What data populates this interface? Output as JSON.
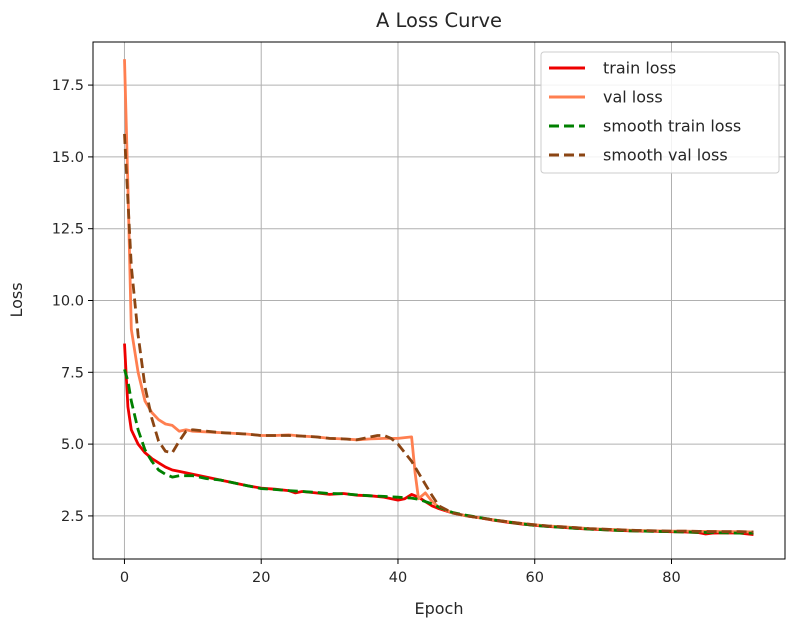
{
  "chart_data": {
    "type": "line",
    "title": "A Loss Curve",
    "xlabel": "Epoch",
    "ylabel": "Loss",
    "xlim": [
      -4.6,
      96.6
    ],
    "ylim": [
      1.0,
      19.0
    ],
    "xticks": [
      0,
      20,
      40,
      60,
      80
    ],
    "xtick_labels": [
      "0",
      "20",
      "40",
      "60",
      "80"
    ],
    "yticks": [
      2.5,
      5.0,
      7.5,
      10.0,
      12.5,
      15.0,
      17.5
    ],
    "ytick_labels": [
      "2.5",
      "5.0",
      "7.5",
      "10.0",
      "12.5",
      "15.0",
      "17.5"
    ],
    "grid": true,
    "legend_position": "upper right",
    "series": [
      {
        "name": "train loss",
        "color": "#ee0000",
        "dash": "solid",
        "points": [
          [
            0,
            8.5
          ],
          [
            0.5,
            6.3
          ],
          [
            1,
            5.5
          ],
          [
            2,
            5.0
          ],
          [
            3,
            4.7
          ],
          [
            4,
            4.5
          ],
          [
            5,
            4.35
          ],
          [
            6,
            4.2
          ],
          [
            7,
            4.1
          ],
          [
            8,
            4.05
          ],
          [
            10,
            3.95
          ],
          [
            12,
            3.85
          ],
          [
            14,
            3.75
          ],
          [
            16,
            3.65
          ],
          [
            18,
            3.55
          ],
          [
            20,
            3.47
          ],
          [
            22,
            3.43
          ],
          [
            24,
            3.38
          ],
          [
            25,
            3.3
          ],
          [
            26,
            3.35
          ],
          [
            28,
            3.3
          ],
          [
            30,
            3.25
          ],
          [
            32,
            3.28
          ],
          [
            34,
            3.22
          ],
          [
            36,
            3.2
          ],
          [
            38,
            3.15
          ],
          [
            40,
            3.05
          ],
          [
            41,
            3.1
          ],
          [
            42,
            3.25
          ],
          [
            43,
            3.15
          ],
          [
            44,
            3.0
          ],
          [
            45,
            2.85
          ],
          [
            46,
            2.75
          ],
          [
            48,
            2.6
          ],
          [
            50,
            2.5
          ],
          [
            52,
            2.43
          ],
          [
            54,
            2.35
          ],
          [
            56,
            2.28
          ],
          [
            58,
            2.22
          ],
          [
            60,
            2.17
          ],
          [
            62,
            2.13
          ],
          [
            64,
            2.1
          ],
          [
            66,
            2.07
          ],
          [
            68,
            2.04
          ],
          [
            70,
            2.02
          ],
          [
            72,
            2.0
          ],
          [
            74,
            1.98
          ],
          [
            76,
            1.97
          ],
          [
            78,
            1.96
          ],
          [
            80,
            1.95
          ],
          [
            82,
            1.94
          ],
          [
            84,
            1.92
          ],
          [
            85,
            1.87
          ],
          [
            86,
            1.9
          ],
          [
            88,
            1.91
          ],
          [
            90,
            1.9
          ],
          [
            92,
            1.85
          ]
        ]
      },
      {
        "name": "val loss",
        "color": "#ff7f50",
        "dash": "solid",
        "points": [
          [
            0,
            18.4
          ],
          [
            0.5,
            14.0
          ],
          [
            1,
            9.0
          ],
          [
            2,
            7.5
          ],
          [
            3,
            6.5
          ],
          [
            4,
            6.1
          ],
          [
            5,
            5.85
          ],
          [
            6,
            5.7
          ],
          [
            7,
            5.65
          ],
          [
            8,
            5.45
          ],
          [
            9,
            5.5
          ],
          [
            10,
            5.45
          ],
          [
            14,
            5.4
          ],
          [
            18,
            5.35
          ],
          [
            20,
            5.3
          ],
          [
            22,
            5.3
          ],
          [
            24,
            5.32
          ],
          [
            26,
            5.28
          ],
          [
            28,
            5.25
          ],
          [
            30,
            5.2
          ],
          [
            32,
            5.18
          ],
          [
            34,
            5.15
          ],
          [
            36,
            5.18
          ],
          [
            38,
            5.2
          ],
          [
            40,
            5.2
          ],
          [
            42,
            5.25
          ],
          [
            42.5,
            4.0
          ],
          [
            43,
            3.1
          ],
          [
            43.5,
            3.2
          ],
          [
            44,
            3.3
          ],
          [
            45,
            3.0
          ],
          [
            46,
            2.8
          ],
          [
            48,
            2.6
          ],
          [
            50,
            2.5
          ],
          [
            52,
            2.43
          ],
          [
            54,
            2.36
          ],
          [
            56,
            2.3
          ],
          [
            58,
            2.24
          ],
          [
            60,
            2.19
          ],
          [
            62,
            2.15
          ],
          [
            64,
            2.12
          ],
          [
            66,
            2.09
          ],
          [
            68,
            2.06
          ],
          [
            70,
            2.04
          ],
          [
            72,
            2.02
          ],
          [
            74,
            2.0
          ],
          [
            76,
            1.99
          ],
          [
            78,
            1.98
          ],
          [
            80,
            1.97
          ],
          [
            82,
            1.97
          ],
          [
            84,
            1.96
          ],
          [
            86,
            1.96
          ],
          [
            88,
            1.95
          ],
          [
            90,
            1.95
          ],
          [
            92,
            1.94
          ]
        ]
      },
      {
        "name": "smooth train loss",
        "color": "#008000",
        "dash": "dashed",
        "points": [
          [
            0,
            7.6
          ],
          [
            0.5,
            7.2
          ],
          [
            1,
            6.5
          ],
          [
            2,
            5.5
          ],
          [
            3,
            4.8
          ],
          [
            4,
            4.4
          ],
          [
            5,
            4.1
          ],
          [
            6,
            3.95
          ],
          [
            7,
            3.85
          ],
          [
            8,
            3.9
          ],
          [
            10,
            3.9
          ],
          [
            12,
            3.8
          ],
          [
            14,
            3.75
          ],
          [
            16,
            3.65
          ],
          [
            18,
            3.55
          ],
          [
            20,
            3.45
          ],
          [
            22,
            3.42
          ],
          [
            24,
            3.38
          ],
          [
            26,
            3.35
          ],
          [
            28,
            3.32
          ],
          [
            30,
            3.28
          ],
          [
            32,
            3.27
          ],
          [
            34,
            3.23
          ],
          [
            36,
            3.2
          ],
          [
            38,
            3.18
          ],
          [
            40,
            3.15
          ],
          [
            42,
            3.12
          ],
          [
            43,
            3.08
          ],
          [
            44,
            3.0
          ],
          [
            45,
            2.92
          ],
          [
            46,
            2.8
          ],
          [
            48,
            2.62
          ],
          [
            50,
            2.52
          ],
          [
            52,
            2.44
          ],
          [
            54,
            2.36
          ],
          [
            56,
            2.29
          ],
          [
            58,
            2.23
          ],
          [
            60,
            2.17
          ],
          [
            62,
            2.13
          ],
          [
            64,
            2.1
          ],
          [
            66,
            2.07
          ],
          [
            68,
            2.04
          ],
          [
            70,
            2.02
          ],
          [
            72,
            2.0
          ],
          [
            74,
            1.98
          ],
          [
            76,
            1.97
          ],
          [
            78,
            1.96
          ],
          [
            80,
            1.95
          ],
          [
            82,
            1.94
          ],
          [
            84,
            1.93
          ],
          [
            86,
            1.92
          ],
          [
            88,
            1.91
          ],
          [
            90,
            1.9
          ],
          [
            92,
            1.9
          ]
        ]
      },
      {
        "name": "smooth val loss",
        "color": "#8b4513",
        "dash": "dashed",
        "points": [
          [
            0,
            15.8
          ],
          [
            0.5,
            13.5
          ],
          [
            1,
            11.2
          ],
          [
            2,
            8.8
          ],
          [
            3,
            7.0
          ],
          [
            4,
            5.9
          ],
          [
            5,
            5.1
          ],
          [
            6,
            4.75
          ],
          [
            7,
            4.7
          ],
          [
            8,
            5.1
          ],
          [
            9,
            5.45
          ],
          [
            10,
            5.5
          ],
          [
            14,
            5.4
          ],
          [
            18,
            5.35
          ],
          [
            20,
            5.3
          ],
          [
            22,
            5.3
          ],
          [
            24,
            5.3
          ],
          [
            26,
            5.28
          ],
          [
            28,
            5.25
          ],
          [
            30,
            5.2
          ],
          [
            32,
            5.18
          ],
          [
            34,
            5.15
          ],
          [
            36,
            5.25
          ],
          [
            37,
            5.3
          ],
          [
            38,
            5.3
          ],
          [
            39,
            5.2
          ],
          [
            40,
            5.0
          ],
          [
            41,
            4.7
          ],
          [
            42,
            4.4
          ],
          [
            43,
            4.0
          ],
          [
            44,
            3.6
          ],
          [
            45,
            3.2
          ],
          [
            46,
            2.85
          ],
          [
            48,
            2.6
          ],
          [
            50,
            2.5
          ],
          [
            52,
            2.43
          ],
          [
            54,
            2.36
          ],
          [
            56,
            2.3
          ],
          [
            58,
            2.24
          ],
          [
            60,
            2.19
          ],
          [
            62,
            2.15
          ],
          [
            64,
            2.12
          ],
          [
            66,
            2.09
          ],
          [
            68,
            2.06
          ],
          [
            70,
            2.04
          ],
          [
            72,
            2.02
          ],
          [
            74,
            2.0
          ],
          [
            76,
            1.99
          ],
          [
            78,
            1.98
          ],
          [
            80,
            1.97
          ],
          [
            82,
            1.97
          ],
          [
            84,
            1.96
          ],
          [
            86,
            1.95
          ],
          [
            88,
            1.95
          ],
          [
            90,
            1.95
          ],
          [
            92,
            1.94
          ]
        ]
      }
    ]
  }
}
